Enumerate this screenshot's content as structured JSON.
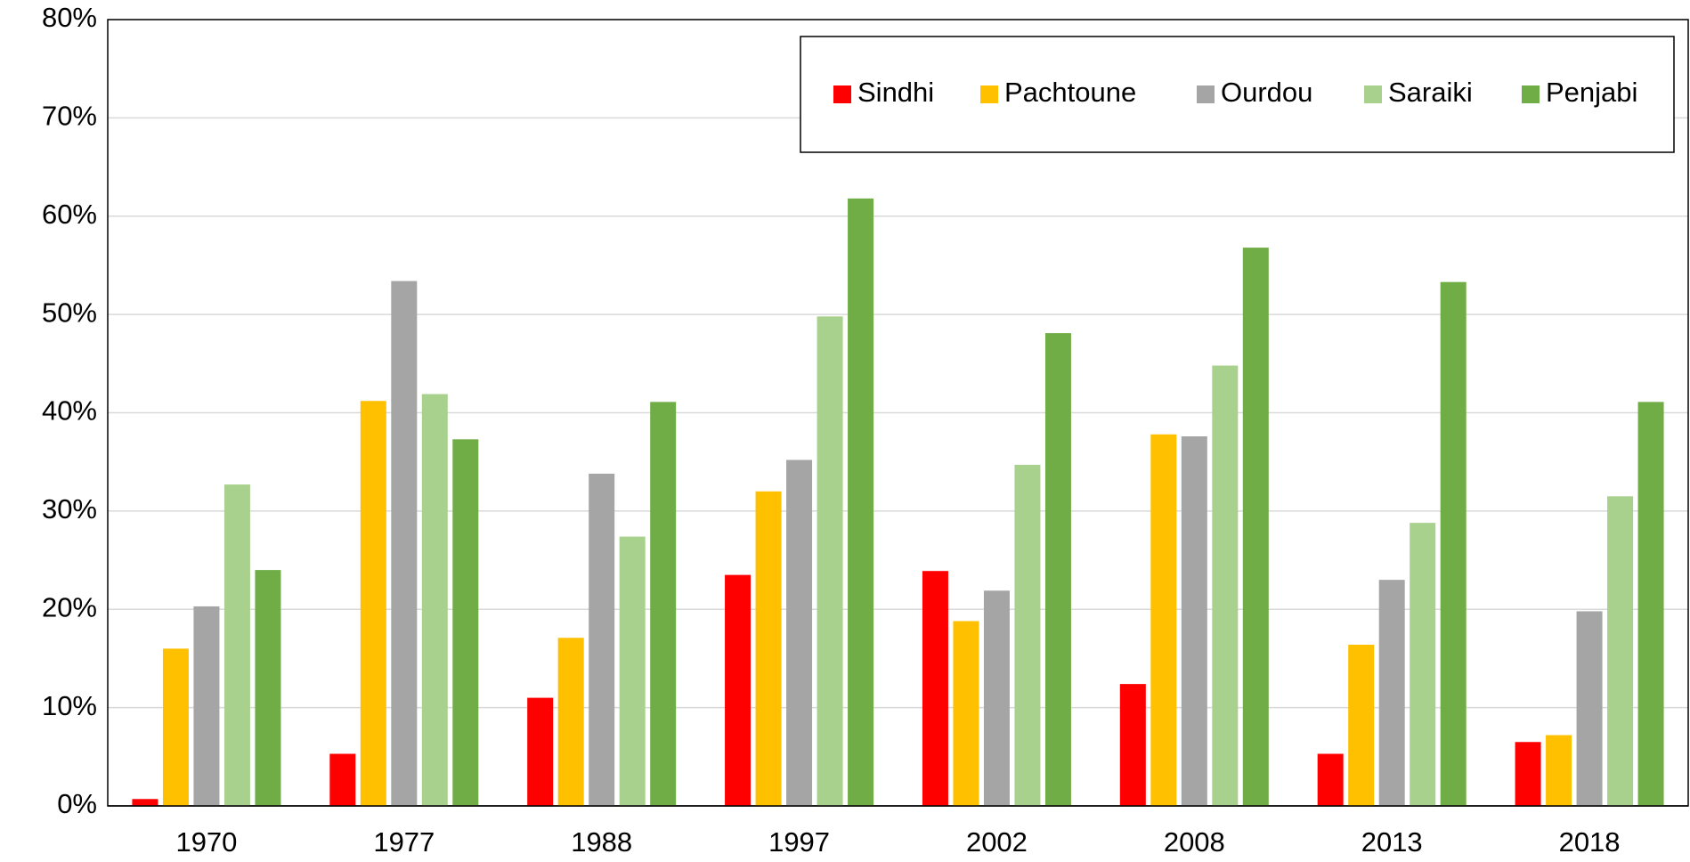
{
  "chart_data": {
    "type": "bar",
    "categories": [
      "1970",
      "1977",
      "1988",
      "1997",
      "2002",
      "2008",
      "2013",
      "2018"
    ],
    "series": [
      {
        "name": "Sindhi",
        "color": "#ff0000",
        "values": [
          0.7,
          5.3,
          11.0,
          23.5,
          23.9,
          12.4,
          5.3,
          6.5
        ]
      },
      {
        "name": "Pachtoune",
        "color": "#ffc000",
        "values": [
          16.0,
          41.2,
          17.1,
          32.0,
          18.8,
          37.8,
          16.4,
          7.2
        ]
      },
      {
        "name": "Ourdou",
        "color": "#a5a5a5",
        "values": [
          20.3,
          53.4,
          33.8,
          35.2,
          21.9,
          37.6,
          23.0,
          19.8
        ]
      },
      {
        "name": "Saraiki",
        "color": "#a9d18e",
        "values": [
          32.7,
          41.9,
          27.4,
          49.8,
          34.7,
          44.8,
          28.8,
          31.5
        ]
      },
      {
        "name": "Penjabi",
        "color": "#70ad47",
        "values": [
          24.0,
          37.3,
          41.1,
          61.8,
          48.1,
          56.8,
          53.3,
          41.1
        ]
      }
    ],
    "ylim": [
      0,
      80
    ],
    "yticks": [
      {
        "value": 0,
        "label": "0%"
      },
      {
        "value": 10,
        "label": "10%"
      },
      {
        "value": 20,
        "label": "20%"
      },
      {
        "value": 30,
        "label": "30%"
      },
      {
        "value": 40,
        "label": "40%"
      },
      {
        "value": 50,
        "label": "50%"
      },
      {
        "value": 60,
        "label": "60%"
      },
      {
        "value": 70,
        "label": "70%"
      },
      {
        "value": 80,
        "label": "80%"
      }
    ],
    "grid": true,
    "legend": "top-right"
  }
}
